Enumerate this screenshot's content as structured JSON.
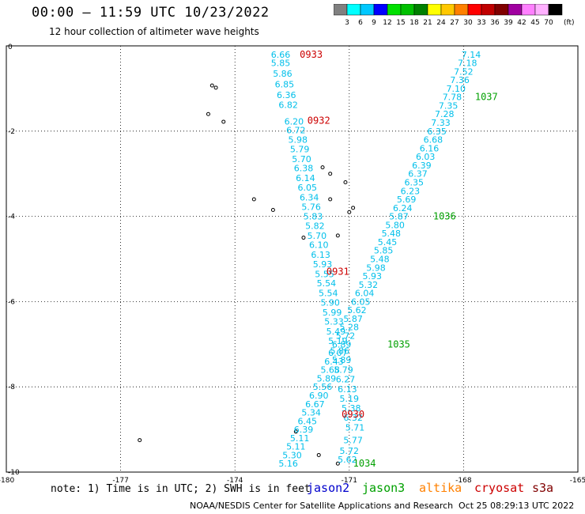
{
  "header": {
    "title": "00:00 – 11:59 UTC 10/23/2022",
    "subtitle": "12 hour collection of altimeter wave heights"
  },
  "colorbar": {
    "colors": [
      "#808080",
      "#00ffff",
      "#00c8ff",
      "#0000ff",
      "#00e000",
      "#00c000",
      "#008000",
      "#ffff00",
      "#ffc800",
      "#ff8000",
      "#ff0000",
      "#c00000",
      "#800000",
      "#a000a0",
      "#ff80ff",
      "#ffb0ff",
      "#000000"
    ],
    "labels": [
      "3",
      "6",
      "9",
      "12",
      "15",
      "18",
      "21",
      "24",
      "27",
      "30",
      "33",
      "36",
      "39",
      "42",
      "45",
      "70"
    ],
    "unit": "(ft)"
  },
  "map": {
    "lon_range": [
      -180,
      -165
    ],
    "lat_range": [
      -10,
      0
    ],
    "x_ticks": [
      "-180",
      "-177",
      "-174",
      "-171",
      "-168",
      "-165"
    ],
    "y_ticks": [
      "0",
      "-2",
      "-4",
      "-6",
      "-8",
      "-10"
    ],
    "grid": true,
    "islands": [
      {
        "lon": -174.6,
        "lat": -0.93
      },
      {
        "lon": -174.5,
        "lat": -0.98
      },
      {
        "lon": -174.7,
        "lat": -1.6
      },
      {
        "lon": -174.3,
        "lat": -1.78
      },
      {
        "lon": -171.7,
        "lat": -2.85
      },
      {
        "lon": -171.5,
        "lat": -3.0
      },
      {
        "lon": -171.1,
        "lat": -3.2
      },
      {
        "lon": -171.5,
        "lat": -3.6
      },
      {
        "lon": -170.9,
        "lat": -3.8
      },
      {
        "lon": -171.0,
        "lat": -3.9
      },
      {
        "lon": -173.5,
        "lat": -3.6
      },
      {
        "lon": -173.0,
        "lat": -3.85
      },
      {
        "lon": -172.2,
        "lat": -4.5
      },
      {
        "lon": -171.3,
        "lat": -4.45
      },
      {
        "lon": -172.4,
        "lat": -9.05
      },
      {
        "lon": -176.5,
        "lat": -9.25
      },
      {
        "lon": -171.8,
        "lat": -9.6
      },
      {
        "lon": -171.3,
        "lat": -9.8
      }
    ]
  },
  "tracks": [
    {
      "satellite": "cryosat",
      "color": "#00bfea",
      "points": [
        {
          "lon": -172.8,
          "lat": -0.2,
          "value": "6.66"
        },
        {
          "lon": -172.8,
          "lat": -0.4,
          "value": "5.85"
        },
        {
          "lon": -172.75,
          "lat": -0.65,
          "value": "5.86"
        },
        {
          "lon": -172.7,
          "lat": -0.9,
          "value": "6.85"
        },
        {
          "lon": -172.65,
          "lat": -1.15,
          "value": "6.36"
        },
        {
          "lon": -172.6,
          "lat": -1.38,
          "value": "6.82"
        },
        {
          "lon": -172.45,
          "lat": -1.77,
          "value": "6.20"
        },
        {
          "lon": -172.4,
          "lat": -1.98,
          "value": "6.72"
        },
        {
          "lon": -172.35,
          "lat": -2.2,
          "value": "5.98"
        },
        {
          "lon": -172.3,
          "lat": -2.42,
          "value": "5.79"
        },
        {
          "lon": -172.25,
          "lat": -2.65,
          "value": "5.70"
        },
        {
          "lon": -172.2,
          "lat": -2.87,
          "value": "6.38"
        },
        {
          "lon": -172.15,
          "lat": -3.1,
          "value": "6.14"
        },
        {
          "lon": -172.1,
          "lat": -3.32,
          "value": "6.05"
        },
        {
          "lon": -172.05,
          "lat": -3.55,
          "value": "6.34"
        },
        {
          "lon": -172.0,
          "lat": -3.78,
          "value": "5.76"
        },
        {
          "lon": -171.95,
          "lat": -4.0,
          "value": "5.83"
        },
        {
          "lon": -171.9,
          "lat": -4.22,
          "value": "5.82"
        },
        {
          "lon": -171.85,
          "lat": -4.45,
          "value": "5.70"
        },
        {
          "lon": -171.8,
          "lat": -4.67,
          "value": "6.10"
        },
        {
          "lon": -171.75,
          "lat": -4.9,
          "value": "6.13"
        },
        {
          "lon": -171.7,
          "lat": -5.12,
          "value": "5.93"
        },
        {
          "lon": -171.65,
          "lat": -5.35,
          "value": "5.55"
        },
        {
          "lon": -171.6,
          "lat": -5.57,
          "value": "5.54"
        },
        {
          "lon": -171.55,
          "lat": -5.8,
          "value": "5.54"
        },
        {
          "lon": -171.5,
          "lat": -6.02,
          "value": "5.90"
        },
        {
          "lon": -171.45,
          "lat": -6.25,
          "value": "5.99"
        },
        {
          "lon": -171.4,
          "lat": -6.47,
          "value": "5.33"
        },
        {
          "lon": -171.35,
          "lat": -6.7,
          "value": "5.49"
        },
        {
          "lon": -171.3,
          "lat": -6.92,
          "value": "5.19"
        },
        {
          "lon": -171.25,
          "lat": -7.15,
          "value": "5.86"
        },
        {
          "lon": -171.2,
          "lat": -7.37,
          "value": "5.89"
        },
        {
          "lon": -171.15,
          "lat": -7.6,
          "value": "5.79"
        },
        {
          "lon": -171.1,
          "lat": -7.82,
          "value": "6.27"
        },
        {
          "lon": -171.05,
          "lat": -8.05,
          "value": "6.13"
        },
        {
          "lon": -171.0,
          "lat": -8.27,
          "value": "5.19"
        },
        {
          "lon": -170.95,
          "lat": -8.5,
          "value": "5.38"
        },
        {
          "lon": -170.9,
          "lat": -8.72,
          "value": "6.32"
        },
        {
          "lon": -170.85,
          "lat": -8.95,
          "value": "5.71"
        },
        {
          "lon": -170.9,
          "lat": -9.25,
          "value": "5.77"
        },
        {
          "lon": -171.0,
          "lat": -9.5,
          "value": "5.72"
        },
        {
          "lon": -171.05,
          "lat": -9.7,
          "value": "5.62"
        }
      ],
      "labels": [
        {
          "lon": -172.0,
          "lat": -0.2,
          "text": "0933"
        },
        {
          "lon": -171.8,
          "lat": -1.75,
          "text": "0932"
        },
        {
          "lon": -171.3,
          "lat": -5.3,
          "text": "0931"
        },
        {
          "lon": -170.9,
          "lat": -8.65,
          "text": "0930"
        }
      ]
    },
    {
      "satellite": "jason3",
      "color": "#00bfea",
      "points": [
        {
          "lon": -167.8,
          "lat": -0.2,
          "value": "7.14"
        },
        {
          "lon": -167.9,
          "lat": -0.4,
          "value": "7.18"
        },
        {
          "lon": -168.0,
          "lat": -0.6,
          "value": "7.52"
        },
        {
          "lon": -168.1,
          "lat": -0.8,
          "value": "7.36"
        },
        {
          "lon": -168.2,
          "lat": -1.0,
          "value": "7.10"
        },
        {
          "lon": -168.3,
          "lat": -1.2,
          "value": "7.78"
        },
        {
          "lon": -168.4,
          "lat": -1.4,
          "value": "7.35"
        },
        {
          "lon": -168.5,
          "lat": -1.6,
          "value": "7.28"
        },
        {
          "lon": -168.6,
          "lat": -1.8,
          "value": "7.33"
        },
        {
          "lon": -168.7,
          "lat": -2.0,
          "value": "6.35"
        },
        {
          "lon": -168.8,
          "lat": -2.2,
          "value": "6.68"
        },
        {
          "lon": -168.9,
          "lat": -2.4,
          "value": "6.16"
        },
        {
          "lon": -169.0,
          "lat": -2.6,
          "value": "6.03"
        },
        {
          "lon": -169.1,
          "lat": -2.8,
          "value": "6.39"
        },
        {
          "lon": -169.2,
          "lat": -3.0,
          "value": "6.37"
        },
        {
          "lon": -169.3,
          "lat": -3.2,
          "value": "6.35"
        },
        {
          "lon": -169.4,
          "lat": -3.4,
          "value": "6.23"
        },
        {
          "lon": -169.5,
          "lat": -3.6,
          "value": "5.69"
        },
        {
          "lon": -169.6,
          "lat": -3.8,
          "value": "6.24"
        },
        {
          "lon": -169.7,
          "lat": -4.0,
          "value": "5.87"
        },
        {
          "lon": -169.8,
          "lat": -4.2,
          "value": "5.80"
        },
        {
          "lon": -169.9,
          "lat": -4.4,
          "value": "5.48"
        },
        {
          "lon": -170.0,
          "lat": -4.6,
          "value": "5.45"
        },
        {
          "lon": -170.1,
          "lat": -4.8,
          "value": "5.85"
        },
        {
          "lon": -170.2,
          "lat": -5.0,
          "value": "5.48"
        },
        {
          "lon": -170.3,
          "lat": -5.2,
          "value": "5.98"
        },
        {
          "lon": -170.4,
          "lat": -5.4,
          "value": "5.93"
        },
        {
          "lon": -170.5,
          "lat": -5.6,
          "value": "5.32"
        },
        {
          "lon": -170.6,
          "lat": -5.8,
          "value": "6.04"
        },
        {
          "lon": -170.7,
          "lat": -6.0,
          "value": "6.05"
        },
        {
          "lon": -170.8,
          "lat": -6.2,
          "value": "5.62"
        },
        {
          "lon": -170.9,
          "lat": -6.4,
          "value": "5.87"
        },
        {
          "lon": -171.0,
          "lat": -6.6,
          "value": "5.28"
        },
        {
          "lon": -171.1,
          "lat": -6.8,
          "value": "5.72"
        },
        {
          "lon": -171.2,
          "lat": -7.0,
          "value": "6.89"
        },
        {
          "lon": -171.3,
          "lat": -7.2,
          "value": "6.07"
        },
        {
          "lon": -171.4,
          "lat": -7.4,
          "value": "6.43"
        },
        {
          "lon": -171.5,
          "lat": -7.6,
          "value": "5.68"
        },
        {
          "lon": -171.6,
          "lat": -7.8,
          "value": "5.89"
        },
        {
          "lon": -171.7,
          "lat": -8.0,
          "value": "5.56"
        },
        {
          "lon": -171.8,
          "lat": -8.2,
          "value": "6.90"
        },
        {
          "lon": -171.9,
          "lat": -8.4,
          "value": "6.67"
        },
        {
          "lon": -172.0,
          "lat": -8.6,
          "value": "5.34"
        },
        {
          "lon": -172.1,
          "lat": -8.8,
          "value": "6.45"
        },
        {
          "lon": -172.2,
          "lat": -9.0,
          "value": "6.39"
        },
        {
          "lon": -172.3,
          "lat": -9.2,
          "value": "5.11"
        },
        {
          "lon": -172.4,
          "lat": -9.4,
          "value": "5.11"
        },
        {
          "lon": -172.5,
          "lat": -9.6,
          "value": "5.30"
        },
        {
          "lon": -172.6,
          "lat": -9.8,
          "value": "5.16"
        }
      ],
      "labels": [
        {
          "lon": -167.4,
          "lat": -1.2,
          "text": "1037"
        },
        {
          "lon": -168.5,
          "lat": -4.0,
          "text": "1036"
        },
        {
          "lon": -169.7,
          "lat": -7.0,
          "text": "1035"
        },
        {
          "lon": -170.6,
          "lat": -9.8,
          "text": "1034"
        }
      ]
    }
  ],
  "footer": {
    "note": "note: 1) Time is in UTC; 2) SWH is in feet",
    "satellites": [
      {
        "name": "jason2",
        "color": "#0000cc"
      },
      {
        "name": "jason3",
        "color": "#00a000"
      },
      {
        "name": "altika",
        "color": "#ff8000"
      },
      {
        "name": "cryosat",
        "color": "#cc0000"
      },
      {
        "name": "s3a",
        "color": "#800000"
      }
    ],
    "credit": "NOAA/NESDIS Center for Satellite Applications and Research",
    "timestamp": "Oct 25 08:29:13 UTC 2022"
  }
}
